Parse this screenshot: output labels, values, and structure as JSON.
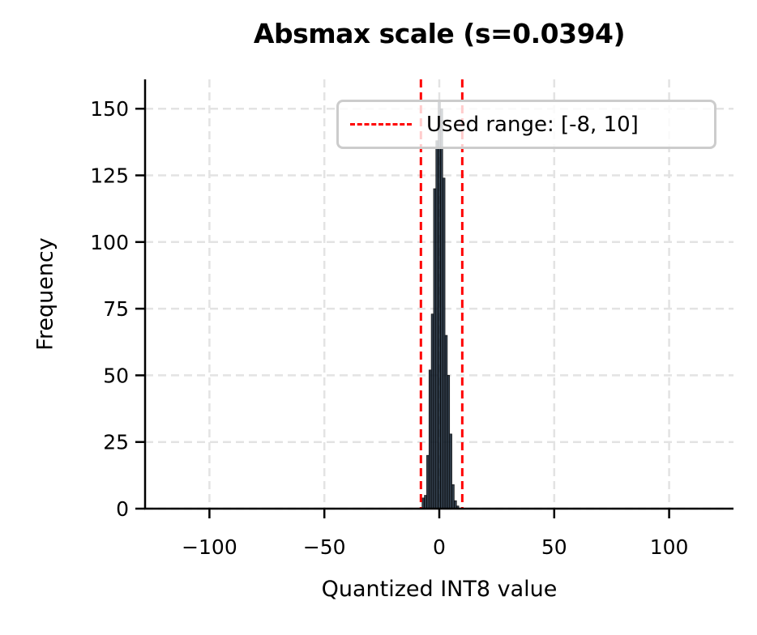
{
  "chart_data": {
    "type": "bar",
    "title": "Absmax scale (s=0.0394)",
    "xlabel": "Quantized INT8 value",
    "ylabel": "Frequency",
    "xlim": [
      -128,
      128
    ],
    "ylim": [
      0,
      161
    ],
    "xticks": [
      -100,
      -50,
      0,
      50,
      100
    ],
    "xtick_labels": [
      "−100",
      "−50",
      "0",
      "50",
      "100"
    ],
    "yticks": [
      0,
      25,
      50,
      75,
      100,
      125,
      150
    ],
    "ytick_labels": [
      "0",
      "25",
      "50",
      "75",
      "100",
      "125",
      "150"
    ],
    "grid": true,
    "bar_color": "#0d1b2a",
    "categories": [
      -7,
      -6,
      -5,
      -4,
      -3,
      -2,
      -1,
      0,
      1,
      2,
      3,
      4,
      5,
      6,
      7,
      8,
      9
    ],
    "values": [
      4,
      5,
      20,
      52,
      73,
      120,
      138,
      153,
      150,
      124,
      65,
      50,
      28,
      9,
      3,
      1,
      0
    ],
    "vlines": [
      {
        "x": -8,
        "color": "#ff0000",
        "style": "dashed"
      },
      {
        "x": 10,
        "color": "#ff0000",
        "style": "dashed"
      }
    ],
    "legend": {
      "position": "upper right",
      "entries": [
        "Used range: [-8, 10]"
      ]
    }
  },
  "title": "Absmax scale (s=0.0394)",
  "xlabel": "Quantized INT8 value",
  "ylabel": "Frequency",
  "legend_label": "Used range: [-8, 10]"
}
